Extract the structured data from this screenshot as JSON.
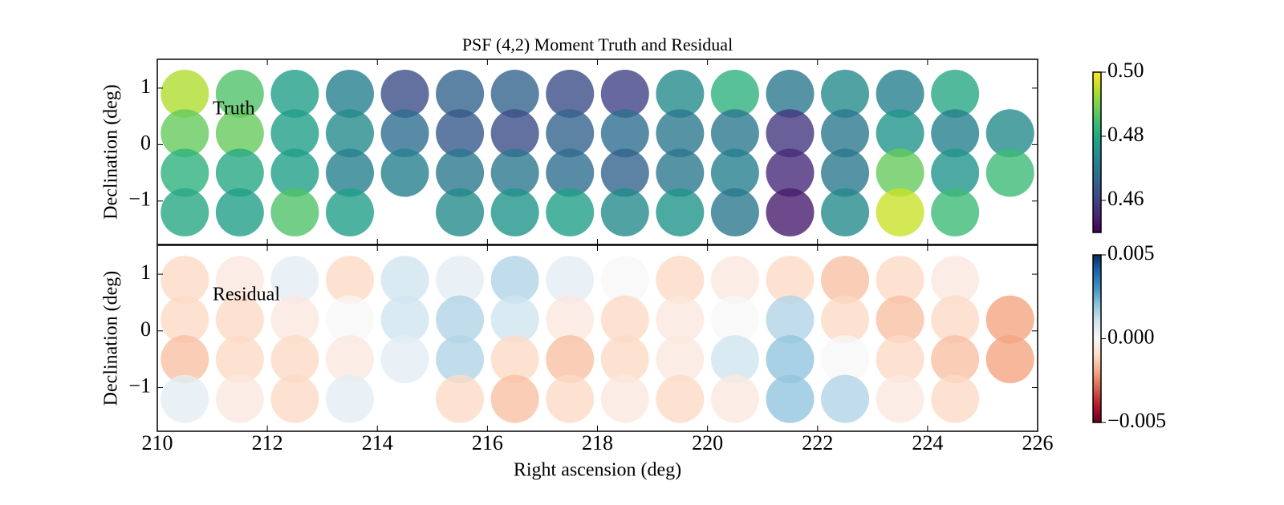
{
  "chart_data": [
    {
      "type": "scatter",
      "title": "PSF (4,2) Moment Truth and Residual",
      "annotation": "Truth",
      "ylabel": "Declination (deg)",
      "cmap": "viridis",
      "xlim": [
        210,
        226
      ],
      "xticks": [
        210,
        212,
        214,
        216,
        218,
        220,
        222,
        224,
        226
      ],
      "ylim": [
        -1.77,
        1.51
      ],
      "yticks": [
        {
          "value": -1,
          "label": "−1"
        },
        0,
        1
      ],
      "x": [
        210.5,
        211.5,
        212.5,
        213.5,
        214.5,
        215.5,
        216.5,
        217.5,
        218.5,
        219.5,
        220.5,
        221.5,
        222.5,
        223.5,
        224.5,
        210.5,
        211.5,
        212.5,
        213.5,
        214.5,
        215.5,
        216.5,
        217.5,
        218.5,
        219.5,
        220.5,
        221.5,
        222.5,
        223.5,
        224.5,
        225.5,
        210.5,
        211.5,
        212.5,
        213.5,
        214.5,
        215.5,
        216.5,
        217.5,
        218.5,
        219.5,
        220.5,
        221.5,
        222.5,
        223.5,
        224.5,
        225.5,
        210.5,
        211.5,
        212.5,
        213.5,
        215.5,
        216.5,
        217.5,
        218.5,
        219.5,
        220.5,
        221.5,
        222.5,
        223.5,
        224.5
      ],
      "y": [
        0.9,
        0.9,
        0.9,
        0.9,
        0.9,
        0.9,
        0.9,
        0.9,
        0.9,
        0.9,
        0.9,
        0.9,
        0.9,
        0.9,
        0.9,
        0.2,
        0.2,
        0.2,
        0.2,
        0.2,
        0.2,
        0.2,
        0.2,
        0.2,
        0.2,
        0.2,
        0.2,
        0.2,
        0.2,
        0.2,
        0.2,
        -0.5,
        -0.5,
        -0.5,
        -0.5,
        -0.5,
        -0.5,
        -0.5,
        -0.5,
        -0.5,
        -0.5,
        -0.5,
        -0.5,
        -0.5,
        -0.5,
        -0.5,
        -0.5,
        -1.2,
        -1.2,
        -1.2,
        -1.2,
        -1.2,
        -1.2,
        -1.2,
        -1.2,
        -1.2,
        -1.2,
        -1.2,
        -1.2,
        -1.2,
        -1.2
      ],
      "values": [
        0.494,
        0.486,
        0.478,
        0.472,
        0.462,
        0.466,
        0.466,
        0.462,
        0.46,
        0.474,
        0.482,
        0.47,
        0.474,
        0.472,
        0.48,
        0.488,
        0.488,
        0.478,
        0.474,
        0.468,
        0.464,
        0.462,
        0.466,
        0.468,
        0.47,
        0.47,
        0.458,
        0.47,
        0.476,
        0.472,
        0.474,
        0.482,
        0.48,
        0.478,
        0.472,
        0.472,
        0.47,
        0.47,
        0.468,
        0.466,
        0.47,
        0.472,
        0.456,
        0.47,
        0.488,
        0.476,
        0.484,
        0.48,
        0.478,
        0.486,
        0.478,
        0.474,
        0.476,
        0.478,
        0.474,
        0.476,
        0.47,
        0.454,
        0.474,
        0.496,
        0.484
      ],
      "colorbar": {
        "lim": [
          0.45,
          0.5
        ],
        "ticks": [
          0.46,
          0.48,
          {
            "value": 0.5,
            "label": "0.50"
          }
        ]
      }
    },
    {
      "type": "scatter",
      "annotation": "Residual",
      "xlabel": "Right ascension (deg)",
      "ylabel": "Declination (deg)",
      "cmap": "RdBu",
      "xlim": [
        210,
        226
      ],
      "xticks": [
        210,
        212,
        214,
        216,
        218,
        220,
        222,
        224,
        226
      ],
      "ylim": [
        -1.77,
        1.51
      ],
      "yticks": [
        {
          "value": -1,
          "label": "−1"
        },
        0,
        1
      ],
      "x": [
        210.5,
        211.5,
        212.5,
        213.5,
        214.5,
        215.5,
        216.5,
        217.5,
        218.5,
        219.5,
        220.5,
        221.5,
        222.5,
        223.5,
        224.5,
        210.5,
        211.5,
        212.5,
        213.5,
        214.5,
        215.5,
        216.5,
        217.5,
        218.5,
        219.5,
        220.5,
        221.5,
        222.5,
        223.5,
        224.5,
        225.5,
        210.5,
        211.5,
        212.5,
        213.5,
        214.5,
        215.5,
        216.5,
        217.5,
        218.5,
        219.5,
        220.5,
        221.5,
        222.5,
        223.5,
        224.5,
        225.5,
        210.5,
        211.5,
        212.5,
        213.5,
        215.5,
        216.5,
        217.5,
        218.5,
        219.5,
        220.5,
        221.5,
        222.5,
        223.5,
        224.5
      ],
      "y": [
        0.9,
        0.9,
        0.9,
        0.9,
        0.9,
        0.9,
        0.9,
        0.9,
        0.9,
        0.9,
        0.9,
        0.9,
        0.9,
        0.9,
        0.9,
        0.2,
        0.2,
        0.2,
        0.2,
        0.2,
        0.2,
        0.2,
        0.2,
        0.2,
        0.2,
        0.2,
        0.2,
        0.2,
        0.2,
        0.2,
        0.2,
        -0.5,
        -0.5,
        -0.5,
        -0.5,
        -0.5,
        -0.5,
        -0.5,
        -0.5,
        -0.5,
        -0.5,
        -0.5,
        -0.5,
        -0.5,
        -0.5,
        -0.5,
        -0.5,
        -1.2,
        -1.2,
        -1.2,
        -1.2,
        -1.2,
        -1.2,
        -1.2,
        -1.2,
        -1.2,
        -1.2,
        -1.2,
        -1.2,
        -1.2,
        -1.2
      ],
      "values": [
        -0.001,
        -0.0005,
        0.0005,
        -0.001,
        0.001,
        0.0005,
        0.0015,
        0.0005,
        0.0,
        -0.001,
        -0.0005,
        -0.001,
        -0.0015,
        -0.001,
        -0.0005,
        -0.001,
        -0.001,
        -0.0005,
        0.0,
        0.001,
        0.0015,
        0.001,
        -0.0005,
        -0.001,
        -0.0005,
        0.0,
        0.0015,
        -0.001,
        -0.0015,
        -0.001,
        -0.002,
        -0.0015,
        -0.001,
        -0.001,
        -0.0005,
        0.0005,
        0.0015,
        -0.001,
        -0.0015,
        -0.001,
        -0.0005,
        0.001,
        0.002,
        0.0,
        -0.001,
        -0.0015,
        -0.002,
        0.0005,
        -0.0005,
        -0.001,
        0.0005,
        -0.001,
        -0.0015,
        -0.001,
        -0.0005,
        -0.001,
        -0.0005,
        0.002,
        0.0015,
        -0.0005,
        -0.001
      ],
      "colorbar": {
        "lim": [
          -0.005,
          0.005
        ],
        "ticks": [
          {
            "value": -0.005,
            "label": "−0.005"
          },
          {
            "value": 0,
            "label": "0.000"
          },
          {
            "value": 0.005,
            "label": "0.005"
          }
        ]
      }
    }
  ]
}
